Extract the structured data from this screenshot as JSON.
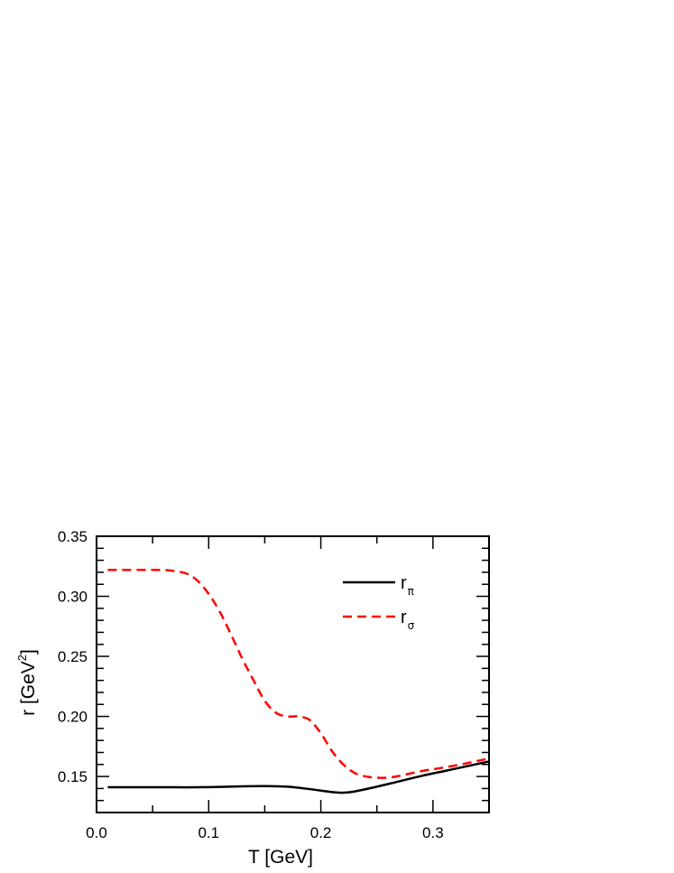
{
  "chart_data": {
    "type": "line",
    "xlabel": "T [GeV]",
    "ylabel": "r [GeV",
    "ylabel_sup": "2",
    "ylabel_close": "]",
    "xlim": [
      0.0,
      0.35
    ],
    "ylim": [
      0.12,
      0.35
    ],
    "x_ticks": [
      {
        "value": 0.0,
        "label": "0.0"
      },
      {
        "value": 0.1,
        "label": "0.1"
      },
      {
        "value": 0.2,
        "label": "0.2"
      },
      {
        "value": 0.3,
        "label": "0.3"
      }
    ],
    "y_ticks": [
      {
        "value": 0.15,
        "label": "0.15"
      },
      {
        "value": 0.2,
        "label": "0.20"
      },
      {
        "value": 0.25,
        "label": "0.25"
      },
      {
        "value": 0.3,
        "label": "0.30"
      },
      {
        "value": 0.35,
        "label": "0.35"
      }
    ],
    "legend_position": "top-right",
    "series": [
      {
        "name": "r",
        "name_sub": "π",
        "color": "#000000",
        "dash": "solid",
        "x": [
          0.01,
          0.03,
          0.05,
          0.07,
          0.09,
          0.11,
          0.13,
          0.15,
          0.17,
          0.19,
          0.21,
          0.22,
          0.23,
          0.25,
          0.27,
          0.29,
          0.31,
          0.33,
          0.35
        ],
        "y": [
          0.141,
          0.141,
          0.141,
          0.141,
          0.141,
          0.1413,
          0.1418,
          0.142,
          0.1415,
          0.1395,
          0.137,
          0.1365,
          0.1375,
          0.1415,
          0.146,
          0.1505,
          0.1545,
          0.1585,
          0.1625
        ]
      },
      {
        "name": "r",
        "name_sub": "σ",
        "color": "#ff0000",
        "dash": "dashed",
        "x": [
          0.01,
          0.03,
          0.05,
          0.065,
          0.08,
          0.09,
          0.1,
          0.11,
          0.12,
          0.13,
          0.14,
          0.15,
          0.16,
          0.17,
          0.18,
          0.19,
          0.2,
          0.21,
          0.22,
          0.23,
          0.24,
          0.25,
          0.26,
          0.27,
          0.29,
          0.31,
          0.33,
          0.35
        ],
        "y": [
          0.322,
          0.322,
          0.322,
          0.3215,
          0.319,
          0.313,
          0.302,
          0.287,
          0.268,
          0.248,
          0.23,
          0.213,
          0.203,
          0.2,
          0.2,
          0.197,
          0.186,
          0.171,
          0.16,
          0.153,
          0.15,
          0.149,
          0.149,
          0.1505,
          0.1545,
          0.1575,
          0.161,
          0.165
        ]
      }
    ]
  }
}
